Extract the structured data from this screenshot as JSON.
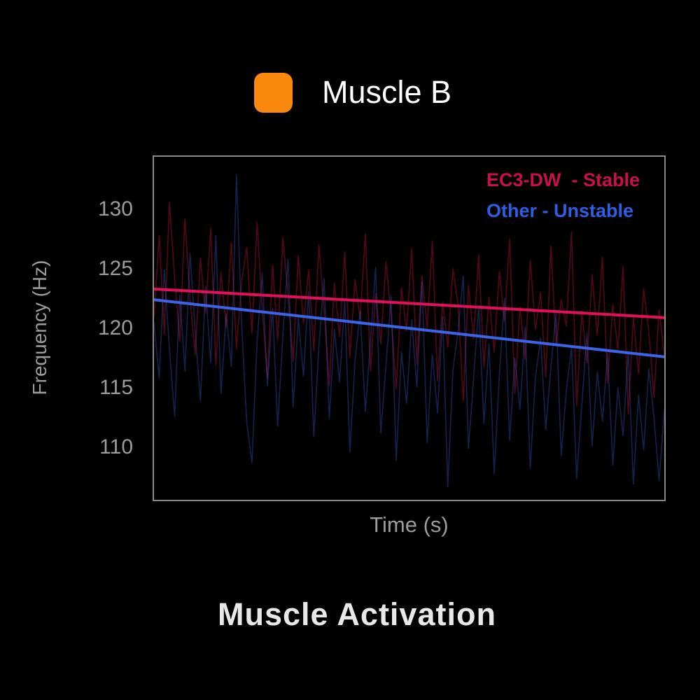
{
  "page": {
    "background": "#000000",
    "border_color": "#8a8a8a",
    "axis_text_color": "#9c9c9c"
  },
  "top_legend": {
    "label": "Muscle B",
    "swatch_color": "#f9880f"
  },
  "inchart_legend": {
    "items": [
      {
        "label": "EC3-DW  - Stable",
        "color": "#c8104b"
      },
      {
        "label": "Other - Unstable",
        "color": "#2f5fe0"
      }
    ]
  },
  "axes": {
    "ylabel": "Frequency (Hz)",
    "xlabel": "Time (s)"
  },
  "title": "Muscle Activation",
  "chart_data": {
    "type": "line",
    "title": "Muscle Activation",
    "xlabel": "Time (s)",
    "ylabel": "Frequency (Hz)",
    "ylim": [
      105.6,
      134.4
    ],
    "yticks": [
      110,
      115,
      120,
      125,
      130
    ],
    "xticks_shown": false,
    "grid": false,
    "legend_position": "top-right",
    "legend_entries": [
      "EC3-DW  - Stable",
      "Other - Unstable"
    ],
    "series": [
      {
        "name": "EC3-DW raw signal",
        "color": "#dc143c",
        "opacity": 0.38,
        "width": 1.6,
        "values": [
          121.0,
          127.8,
          119.5,
          130.6,
          124.2,
          118.9,
          129.2,
          122.5,
          117.8,
          125.9,
          121.3,
          128.4,
          116.9,
          124.7,
          120.1,
          127.2,
          118.3,
          123.9,
          126.8,
          119.6,
          128.9,
          121.7,
          115.8,
          125.3,
          119.0,
          127.6,
          122.8,
          117.2,
          126.1,
          120.4,
          124.9,
          118.1,
          127.0,
          121.5,
          115.2,
          123.8,
          119.3,
          126.4,
          117.6,
          124.1,
          120.8,
          127.9,
          116.4,
          122.9,
          118.7,
          125.6,
          121.1,
          114.9,
          123.4,
          119.8,
          126.7,
          117.0,
          124.4,
          120.0,
          127.3,
          115.6,
          122.2,
          118.4,
          125.0,
          121.9,
          113.9,
          123.6,
          119.1,
          126.2,
          116.7,
          122.6,
          118.0,
          124.8,
          120.6,
          127.5,
          114.5,
          121.8,
          117.4,
          125.7,
          119.9,
          123.0,
          115.9,
          126.9,
          118.6,
          122.4,
          120.2,
          128.1,
          113.5,
          121.4,
          117.1,
          124.5,
          119.4,
          126.0,
          115.4,
          122.0,
          118.2,
          125.2,
          112.8,
          120.9,
          116.2,
          123.3,
          119.7,
          114.2,
          121.6,
          117.7
        ]
      },
      {
        "name": "Other raw signal",
        "color": "#3b64e8",
        "opacity": 0.34,
        "width": 1.6,
        "values": [
          120.5,
          115.8,
          124.9,
          118.2,
          112.6,
          122.8,
          116.4,
          126.3,
          119.7,
          113.9,
          123.5,
          117.1,
          127.8,
          114.5,
          121.2,
          116.8,
          132.9,
          120.3,
          112.1,
          108.7,
          118.9,
          124.6,
          115.2,
          121.7,
          111.8,
          119.4,
          125.8,
          113.4,
          120.9,
          116.0,
          123.1,
          110.9,
          118.5,
          124.2,
          112.4,
          119.9,
          115.5,
          122.3,
          109.6,
          117.3,
          121.4,
          113.0,
          119.0,
          125.1,
          111.2,
          116.9,
          122.7,
          108.9,
          118.0,
          113.7,
          120.7,
          115.1,
          123.9,
          110.4,
          117.8,
          112.9,
          121.0,
          106.7,
          116.5,
          119.8,
          124.4,
          109.9,
          115.7,
          121.9,
          112.0,
          118.7,
          107.8,
          116.1,
          122.5,
          110.6,
          117.5,
          113.2,
          120.1,
          108.2,
          115.9,
          119.2,
          111.5,
          116.7,
          121.3,
          109.3,
          114.8,
          118.4,
          107.4,
          113.6,
          119.6,
          110.1,
          116.3,
          112.2,
          117.9,
          108.5,
          115.0,
          111.0,
          118.1,
          106.9,
          114.4,
          109.8,
          116.6,
          112.5,
          107.2,
          113.1
        ]
      },
      {
        "name": "EC3-DW - Stable (trend)",
        "color": "#e0105a",
        "opacity": 1,
        "width": 4,
        "values": [
          123.3,
          120.9
        ]
      },
      {
        "name": "Other - Unstable (trend)",
        "color": "#3b64e8",
        "opacity": 1,
        "width": 4,
        "values": [
          122.4,
          117.6
        ]
      }
    ]
  }
}
